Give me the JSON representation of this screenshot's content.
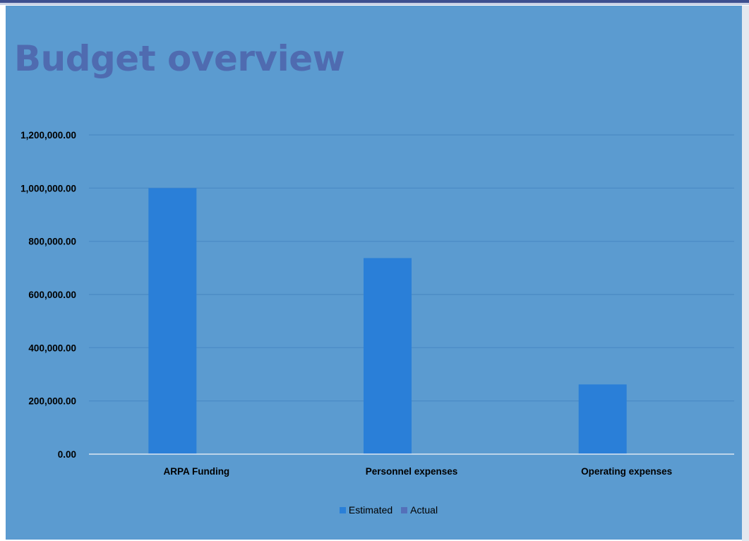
{
  "colors": {
    "background": "#5b9bd0",
    "title": "#4f6bb0",
    "estimated": "#2a7fd8",
    "actual": "#5470b9",
    "gridline": "#4a8ac4",
    "axis": "#dce6f1"
  },
  "chart_data": {
    "type": "bar",
    "title": "Budget overview",
    "categories": [
      "ARPA Funding",
      "Personnel expenses",
      "Operating expenses"
    ],
    "series": [
      {
        "name": "Estimated",
        "values": [
          1000000,
          737000,
          262000
        ]
      },
      {
        "name": "Actual",
        "values": [
          0,
          0,
          0
        ]
      }
    ],
    "y_ticks": [
      "0.00",
      "200,000.00",
      "400,000.00",
      "600,000.00",
      "800,000.00",
      "1,000,000.00",
      "1,200,000.00"
    ],
    "ylim": [
      0,
      1200000
    ],
    "grid": true,
    "legend_position": "bottom"
  }
}
